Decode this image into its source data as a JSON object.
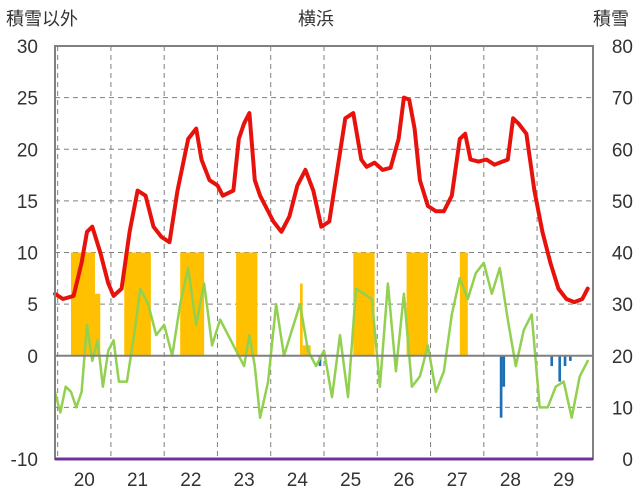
{
  "chart_data": {
    "type": "line",
    "title": "横浜",
    "ylabel_left": "積雪以外",
    "ylabel_right": "積雪",
    "ylim_left": [
      -10,
      30
    ],
    "ylim_right": [
      0,
      80
    ],
    "yticks_left": [
      "30",
      "25",
      "20",
      "15",
      "10",
      "5",
      "0",
      "-10"
    ],
    "yticks_right": [
      "80",
      "70",
      "60",
      "50",
      "40",
      "30",
      "20",
      "10",
      "0"
    ],
    "categories": [
      "20",
      "21",
      "22",
      "23",
      "24",
      "25",
      "26",
      "27",
      "28",
      "29"
    ],
    "grid": true,
    "colors": {
      "red": "#e8120c",
      "green": "#92d050",
      "orange": "#ffc000",
      "blue": "#1f6fb5",
      "purple": "#7030a0",
      "frame": "#808080"
    },
    "series": [
      {
        "style": "line-red-thick",
        "axis": "left",
        "x": [
          19.45,
          19.6,
          19.8,
          19.95,
          20.05,
          20.15,
          20.3,
          20.45,
          20.55,
          20.7,
          20.85,
          21.0,
          21.15,
          21.3,
          21.45,
          21.6,
          21.75,
          21.95,
          22.1,
          22.2,
          22.35,
          22.5,
          22.6,
          22.8,
          22.9,
          23.0,
          23.1,
          23.2,
          23.3,
          23.4,
          23.55,
          23.7,
          23.85,
          24.0,
          24.15,
          24.3,
          24.45,
          24.6,
          24.75,
          24.9,
          25.05,
          25.2,
          25.3,
          25.45,
          25.6,
          25.75,
          25.9,
          26.0,
          26.1,
          26.2,
          26.3,
          26.45,
          26.6,
          26.75,
          26.9,
          27.05,
          27.15,
          27.25,
          27.4,
          27.55,
          27.7,
          27.85,
          27.95,
          28.05,
          28.15,
          28.3,
          28.45,
          28.6,
          28.75,
          28.9,
          29.05,
          29.2,
          29.35,
          29.45
        ],
        "y": [
          6,
          5.5,
          5.8,
          9,
          12,
          12.5,
          10,
          7,
          5.8,
          6.5,
          12,
          16,
          15.5,
          12.5,
          11.5,
          11,
          16,
          21,
          22,
          19,
          17,
          16.5,
          15.5,
          16,
          21,
          22.5,
          23.5,
          17,
          15.5,
          14.5,
          13,
          12,
          13.5,
          16.5,
          18,
          16,
          12.5,
          13,
          18,
          23,
          23.5,
          19,
          18.3,
          18.7,
          18,
          18.2,
          21,
          25,
          24.8,
          22,
          17,
          14.5,
          14,
          14,
          15.5,
          21,
          21.5,
          19,
          18.8,
          19,
          18.5,
          18.8,
          19,
          23,
          22.5,
          21.5,
          16,
          12,
          9,
          6.5,
          5.5,
          5.2,
          5.5,
          6.5
        ]
      },
      {
        "style": "line-green",
        "axis": "left",
        "x": [
          19.45,
          19.55,
          19.65,
          19.75,
          19.85,
          19.95,
          20.05,
          20.15,
          20.25,
          20.35,
          20.45,
          20.55,
          20.65,
          20.8,
          20.95,
          21.05,
          21.2,
          21.35,
          21.5,
          21.65,
          21.8,
          21.95,
          22.1,
          22.25,
          22.4,
          22.55,
          22.7,
          22.85,
          23.0,
          23.1,
          23.2,
          23.3,
          23.45,
          23.6,
          23.75,
          23.9,
          24.05,
          24.2,
          24.35,
          24.5,
          24.65,
          24.8,
          24.95,
          25.1,
          25.25,
          25.4,
          25.55,
          25.7,
          25.85,
          26.0,
          26.15,
          26.3,
          26.45,
          26.6,
          26.75,
          26.9,
          27.05,
          27.2,
          27.35,
          27.5,
          27.65,
          27.8,
          27.95,
          28.1,
          28.25,
          28.4,
          28.55,
          28.7,
          28.85,
          29.0,
          29.15,
          29.3,
          29.45
        ],
        "y": [
          -3.5,
          -5.5,
          -3,
          -3.5,
          -5,
          -3.5,
          3,
          -0.5,
          1.5,
          -3,
          0.5,
          1.5,
          -2.5,
          -2.5,
          2.5,
          6.5,
          5,
          2,
          3,
          0,
          5,
          8.5,
          3,
          7,
          1,
          3.5,
          2,
          0.5,
          -1,
          2,
          -1,
          -6,
          -2.5,
          5,
          0,
          2.5,
          5,
          0.5,
          -1,
          0.5,
          -4,
          2,
          -4,
          6.5,
          6,
          5.5,
          -3,
          7,
          -1.5,
          6,
          -3,
          -2,
          1,
          -3.5,
          -1.5,
          4,
          7.5,
          5.5,
          8,
          9,
          6,
          8.5,
          3.5,
          -1,
          2.5,
          4,
          -5,
          -5,
          -3,
          -2.5,
          -6,
          -2,
          -0.5
        ]
      },
      {
        "style": "bars-orange",
        "axis": "left",
        "ranges": [
          [
            19.75,
            20.2,
            10
          ],
          [
            20.2,
            20.3,
            6
          ],
          [
            20.75,
            21.25,
            10
          ],
          [
            21.8,
            22.25,
            10
          ],
          [
            22.85,
            23.25,
            10
          ],
          [
            24.05,
            24.1,
            7
          ],
          [
            24.1,
            24.25,
            1
          ],
          [
            25.05,
            25.45,
            10
          ],
          [
            26.05,
            26.45,
            10
          ],
          [
            27.05,
            27.2,
            10
          ]
        ]
      },
      {
        "style": "bars-blue",
        "axis": "left",
        "ranges": [
          [
            24.4,
            24.45,
            -1
          ],
          [
            27.8,
            27.85,
            -6
          ],
          [
            27.85,
            27.9,
            -3
          ],
          [
            28.75,
            28.8,
            -1
          ],
          [
            28.9,
            28.95,
            -2.5
          ],
          [
            29.0,
            29.05,
            -1
          ],
          [
            29.1,
            29.15,
            -0.5
          ]
        ]
      },
      {
        "style": "baseline-purple",
        "axis": "left",
        "y": -10
      }
    ]
  }
}
